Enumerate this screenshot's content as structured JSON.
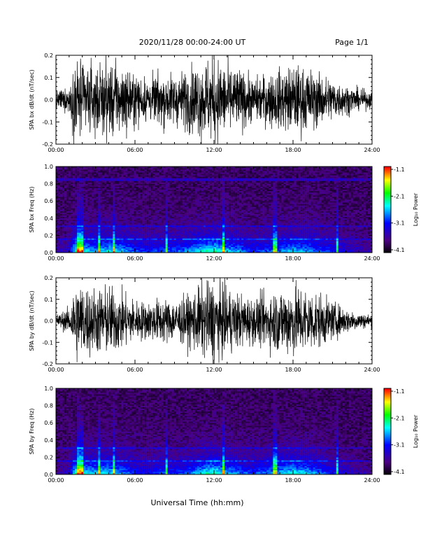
{
  "header": {
    "title": "2020/11/28  00:00-24:00 UT",
    "page": "Page 1/1"
  },
  "x_axis_title": "Universal Time (hh:mm)",
  "x_ticks": [
    "00:00",
    "06:00",
    "12:00",
    "18:00",
    "24:00"
  ],
  "colorbar": {
    "label": "Log₁₀ Power",
    "ticks": [
      "-1.1",
      "-2.1",
      "-3.1",
      "-4.1"
    ],
    "colors": [
      "#000000",
      "#4b0082",
      "#0000ff",
      "#00ffff",
      "#00ff00",
      "#ffff00",
      "#ff0000"
    ]
  },
  "chart_data": [
    {
      "type": "line",
      "ylabel": "SPA bx dB/dt (nT/sec)",
      "x_range_hours": [
        0,
        24
      ],
      "ylim": [
        -0.2,
        0.2
      ],
      "y_ticks": [
        "0.2",
        "0.1",
        "0.0",
        "-0.1",
        "-0.2"
      ],
      "amplitude_envelope": {
        "x_hours": [
          0,
          1,
          1.5,
          2,
          3,
          4,
          5,
          6,
          7,
          8,
          9,
          10,
          11,
          12,
          13,
          14,
          15,
          16,
          17,
          18,
          19,
          20,
          21,
          22,
          23,
          24
        ],
        "y_amplitude": [
          0.04,
          0.06,
          0.2,
          0.18,
          0.15,
          0.18,
          0.16,
          0.12,
          0.1,
          0.12,
          0.12,
          0.14,
          0.18,
          0.2,
          0.16,
          0.14,
          0.1,
          0.12,
          0.14,
          0.16,
          0.15,
          0.12,
          0.1,
          0.07,
          0.05,
          0.04
        ]
      },
      "color": "#000000"
    },
    {
      "type": "heatmap",
      "ylabel": "SPA bx Freq (Hz)",
      "x_range_hours": [
        0,
        24
      ],
      "ylim": [
        0,
        1.0
      ],
      "y_ticks": [
        "1.0",
        "0.8",
        "0.6",
        "0.4",
        "0.2",
        "0.0"
      ],
      "z_range_log10_power": [
        -4.1,
        -1.1
      ],
      "bright_columns_hours": [
        1.7,
        1.9,
        3.3,
        4.4,
        8.4,
        12.7,
        16.6,
        21.4
      ],
      "bright_rows_hz": [
        0.31,
        0.16,
        0.85
      ]
    },
    {
      "type": "line",
      "ylabel": "SPA by dB/dt (nT/sec)",
      "x_range_hours": [
        0,
        24
      ],
      "ylim": [
        -0.2,
        0.2
      ],
      "y_ticks": [
        "0.2",
        "0.1",
        "0.0",
        "-0.1",
        "-0.2"
      ],
      "amplitude_envelope": {
        "x_hours": [
          0,
          1,
          1.5,
          2,
          3,
          4,
          5,
          6,
          7,
          8,
          9,
          10,
          11,
          12,
          13,
          14,
          15,
          16,
          17,
          18,
          19,
          20,
          21,
          22,
          23,
          24
        ],
        "y_amplitude": [
          0.03,
          0.06,
          0.2,
          0.18,
          0.16,
          0.17,
          0.14,
          0.1,
          0.09,
          0.11,
          0.1,
          0.12,
          0.17,
          0.2,
          0.16,
          0.13,
          0.11,
          0.13,
          0.16,
          0.18,
          0.16,
          0.13,
          0.09,
          0.06,
          0.04,
          0.03
        ]
      },
      "color": "#000000"
    },
    {
      "type": "heatmap",
      "ylabel": "SPA by Freq (Hz)",
      "x_range_hours": [
        0,
        24
      ],
      "ylim": [
        0,
        1.0
      ],
      "y_ticks": [
        "1.0",
        "0.8",
        "0.6",
        "0.4",
        "0.2",
        "0.0"
      ],
      "z_range_log10_power": [
        -4.1,
        -1.1
      ],
      "bright_columns_hours": [
        1.7,
        1.9,
        3.3,
        4.4,
        8.4,
        12.7,
        16.6,
        21.4
      ],
      "bright_rows_hz": [
        0.31,
        0.16
      ]
    }
  ]
}
